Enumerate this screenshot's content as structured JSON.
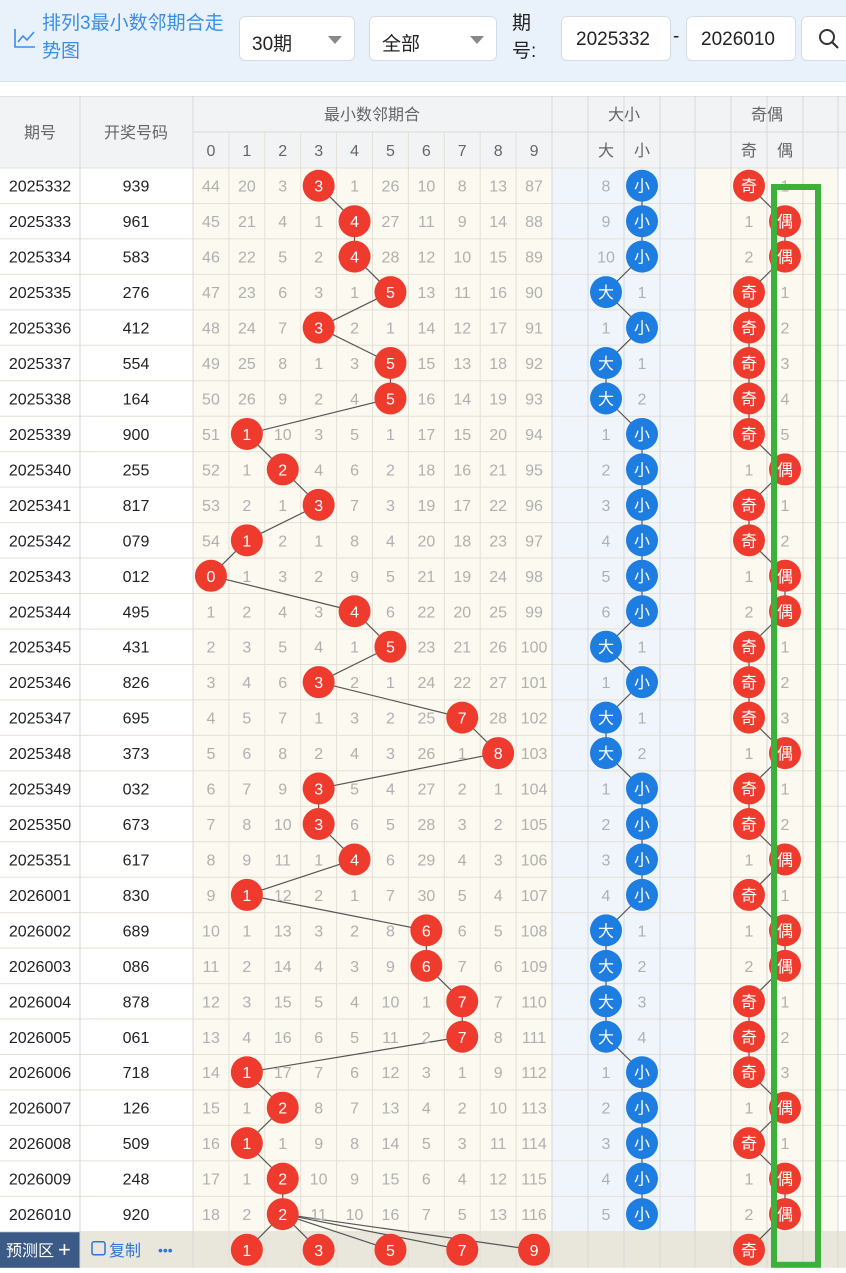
{
  "title": "排列3最小数邻期合走势图",
  "filters": {
    "periods": "30期",
    "scope": "全部",
    "range_label": "期号:",
    "start": "2025332",
    "end": "2026010",
    "dash": "-"
  },
  "headers": {
    "issue": "期号",
    "draw": "开奖号码",
    "group_min": "最小数邻期合",
    "group_size": "大小",
    "group_parity": "奇偶",
    "big": "大",
    "small": "小",
    "odd": "奇",
    "even": "偶",
    "digits": [
      "0",
      "1",
      "2",
      "3",
      "4",
      "5",
      "6",
      "7",
      "8",
      "9"
    ]
  },
  "colors": {
    "red": "#ef3b2d",
    "blue": "#1e7de0",
    "highlight": "#3bb13b"
  },
  "rows": [
    {
      "issue": "2025332",
      "draw": "939",
      "mv": 3,
      "miss": [
        44,
        20,
        3,
        null,
        1,
        26,
        10,
        8,
        13,
        87
      ],
      "size": "小",
      "bs": 8,
      "parity": "奇",
      "op": 1
    },
    {
      "issue": "2025333",
      "draw": "961",
      "mv": 4,
      "miss": [
        45,
        21,
        4,
        1,
        null,
        27,
        11,
        9,
        14,
        88
      ],
      "size": "小",
      "bs": 9,
      "parity": "偶",
      "op": 1
    },
    {
      "issue": "2025334",
      "draw": "583",
      "mv": 4,
      "miss": [
        46,
        22,
        5,
        2,
        null,
        28,
        12,
        10,
        15,
        89
      ],
      "size": "小",
      "bs": 10,
      "parity": "偶",
      "op": 2
    },
    {
      "issue": "2025335",
      "draw": "276",
      "mv": 5,
      "miss": [
        47,
        23,
        6,
        3,
        1,
        null,
        13,
        11,
        16,
        90
      ],
      "size": "大",
      "bs": 1,
      "parity": "奇",
      "op": 1
    },
    {
      "issue": "2025336",
      "draw": "412",
      "mv": 3,
      "miss": [
        48,
        24,
        7,
        null,
        2,
        1,
        14,
        12,
        17,
        91
      ],
      "size": "小",
      "bs": 1,
      "parity": "奇",
      "op": 2
    },
    {
      "issue": "2025337",
      "draw": "554",
      "mv": 5,
      "miss": [
        49,
        25,
        8,
        1,
        3,
        null,
        15,
        13,
        18,
        92
      ],
      "size": "大",
      "bs": 1,
      "parity": "奇",
      "op": 3
    },
    {
      "issue": "2025338",
      "draw": "164",
      "mv": 5,
      "miss": [
        50,
        26,
        9,
        2,
        4,
        null,
        16,
        14,
        19,
        93
      ],
      "size": "大",
      "bs": 2,
      "parity": "奇",
      "op": 4
    },
    {
      "issue": "2025339",
      "draw": "900",
      "mv": 1,
      "miss": [
        51,
        null,
        10,
        3,
        5,
        1,
        17,
        15,
        20,
        94
      ],
      "size": "小",
      "bs": 1,
      "parity": "奇",
      "op": 5
    },
    {
      "issue": "2025340",
      "draw": "255",
      "mv": 2,
      "miss": [
        52,
        1,
        null,
        4,
        6,
        2,
        18,
        16,
        21,
        95
      ],
      "size": "小",
      "bs": 2,
      "parity": "偶",
      "op": 1
    },
    {
      "issue": "2025341",
      "draw": "817",
      "mv": 3,
      "miss": [
        53,
        2,
        1,
        null,
        7,
        3,
        19,
        17,
        22,
        96
      ],
      "size": "小",
      "bs": 3,
      "parity": "奇",
      "op": 1
    },
    {
      "issue": "2025342",
      "draw": "079",
      "mv": 1,
      "miss": [
        54,
        null,
        2,
        1,
        8,
        4,
        20,
        18,
        23,
        97
      ],
      "size": "小",
      "bs": 4,
      "parity": "奇",
      "op": 2
    },
    {
      "issue": "2025343",
      "draw": "012",
      "mv": 0,
      "miss": [
        null,
        1,
        3,
        2,
        9,
        5,
        21,
        19,
        24,
        98
      ],
      "size": "小",
      "bs": 5,
      "parity": "偶",
      "op": 1
    },
    {
      "issue": "2025344",
      "draw": "495",
      "mv": 4,
      "miss": [
        1,
        2,
        4,
        3,
        null,
        6,
        22,
        20,
        25,
        99
      ],
      "size": "小",
      "bs": 6,
      "parity": "偶",
      "op": 2
    },
    {
      "issue": "2025345",
      "draw": "431",
      "mv": 5,
      "miss": [
        2,
        3,
        5,
        4,
        1,
        null,
        23,
        21,
        26,
        100
      ],
      "size": "大",
      "bs": 1,
      "parity": "奇",
      "op": 1
    },
    {
      "issue": "2025346",
      "draw": "826",
      "mv": 3,
      "miss": [
        3,
        4,
        6,
        null,
        2,
        1,
        24,
        22,
        27,
        101
      ],
      "size": "小",
      "bs": 1,
      "parity": "奇",
      "op": 2
    },
    {
      "issue": "2025347",
      "draw": "695",
      "mv": 7,
      "miss": [
        4,
        5,
        7,
        1,
        3,
        2,
        25,
        null,
        28,
        102
      ],
      "size": "大",
      "bs": 1,
      "parity": "奇",
      "op": 3
    },
    {
      "issue": "2025348",
      "draw": "373",
      "mv": 8,
      "miss": [
        5,
        6,
        8,
        2,
        4,
        3,
        26,
        1,
        null,
        103
      ],
      "size": "大",
      "bs": 2,
      "parity": "偶",
      "op": 1
    },
    {
      "issue": "2025349",
      "draw": "032",
      "mv": 3,
      "miss": [
        6,
        7,
        9,
        null,
        5,
        4,
        27,
        2,
        1,
        104
      ],
      "size": "小",
      "bs": 1,
      "parity": "奇",
      "op": 1
    },
    {
      "issue": "2025350",
      "draw": "673",
      "mv": 3,
      "miss": [
        7,
        8,
        10,
        null,
        6,
        5,
        28,
        3,
        2,
        105
      ],
      "size": "小",
      "bs": 2,
      "parity": "奇",
      "op": 2
    },
    {
      "issue": "2025351",
      "draw": "617",
      "mv": 4,
      "miss": [
        8,
        9,
        11,
        1,
        null,
        6,
        29,
        4,
        3,
        106
      ],
      "size": "小",
      "bs": 3,
      "parity": "偶",
      "op": 1
    },
    {
      "issue": "2026001",
      "draw": "830",
      "mv": 1,
      "miss": [
        9,
        null,
        12,
        2,
        1,
        7,
        30,
        5,
        4,
        107
      ],
      "size": "小",
      "bs": 4,
      "parity": "奇",
      "op": 1
    },
    {
      "issue": "2026002",
      "draw": "689",
      "mv": 6,
      "miss": [
        10,
        1,
        13,
        3,
        2,
        8,
        null,
        6,
        5,
        108
      ],
      "size": "大",
      "bs": 1,
      "parity": "偶",
      "op": 1
    },
    {
      "issue": "2026003",
      "draw": "086",
      "mv": 6,
      "miss": [
        11,
        2,
        14,
        4,
        3,
        9,
        null,
        7,
        6,
        109
      ],
      "size": "大",
      "bs": 2,
      "parity": "偶",
      "op": 2
    },
    {
      "issue": "2026004",
      "draw": "878",
      "mv": 7,
      "miss": [
        12,
        3,
        15,
        5,
        4,
        10,
        1,
        null,
        7,
        110
      ],
      "size": "大",
      "bs": 3,
      "parity": "奇",
      "op": 1
    },
    {
      "issue": "2026005",
      "draw": "061",
      "mv": 7,
      "miss": [
        13,
        4,
        16,
        6,
        5,
        11,
        2,
        null,
        8,
        111
      ],
      "size": "大",
      "bs": 4,
      "parity": "奇",
      "op": 2
    },
    {
      "issue": "2026006",
      "draw": "718",
      "mv": 1,
      "miss": [
        14,
        null,
        17,
        7,
        6,
        12,
        3,
        1,
        9,
        112
      ],
      "size": "小",
      "bs": 1,
      "parity": "奇",
      "op": 3
    },
    {
      "issue": "2026007",
      "draw": "126",
      "mv": 2,
      "miss": [
        15,
        1,
        null,
        8,
        7,
        13,
        4,
        2,
        10,
        113
      ],
      "size": "小",
      "bs": 2,
      "parity": "偶",
      "op": 1
    },
    {
      "issue": "2026008",
      "draw": "509",
      "mv": 1,
      "miss": [
        16,
        null,
        1,
        9,
        8,
        14,
        5,
        3,
        11,
        114
      ],
      "size": "小",
      "bs": 3,
      "parity": "奇",
      "op": 1
    },
    {
      "issue": "2026009",
      "draw": "248",
      "mv": 2,
      "miss": [
        17,
        1,
        null,
        10,
        9,
        15,
        6,
        4,
        12,
        115
      ],
      "size": "小",
      "bs": 4,
      "parity": "偶",
      "op": 1
    },
    {
      "issue": "2026010",
      "draw": "920",
      "mv": 2,
      "miss": [
        18,
        2,
        null,
        11,
        10,
        16,
        7,
        5,
        13,
        116
      ],
      "size": "小",
      "bs": 5,
      "parity": "偶",
      "op": 2
    }
  ],
  "footer": {
    "predict": "预测区",
    "copy": "复制",
    "more": "•••",
    "predict_digits": [
      1,
      3,
      5,
      7,
      9
    ],
    "predict_parity": "奇"
  }
}
